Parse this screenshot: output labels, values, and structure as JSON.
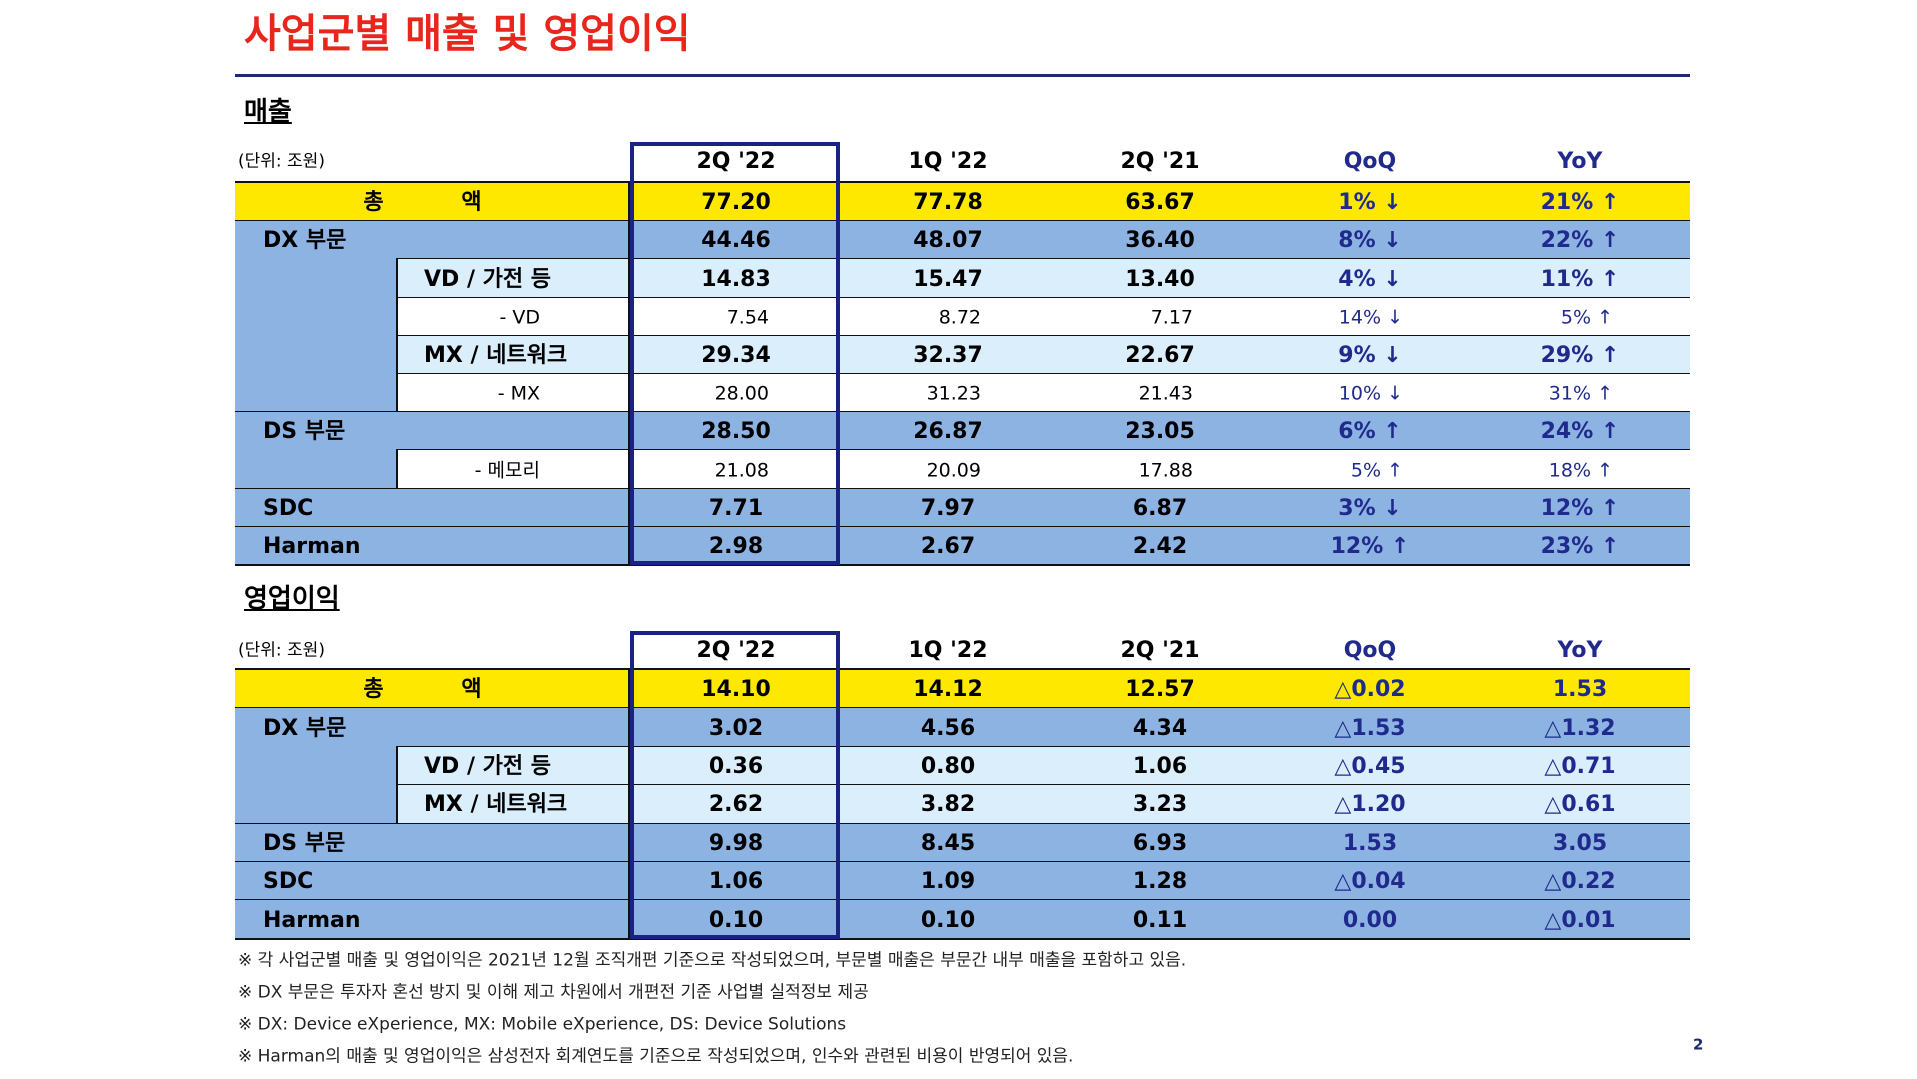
{
  "title": "사업군별 매출 및 영업이익",
  "sections": [
    {
      "title": "매출",
      "unit": "(단위: 조원)",
      "headers": [
        "2Q '22",
        "1Q '22",
        "2Q '21",
        "QoQ",
        "YoY"
      ],
      "rows": [
        {
          "label": "총 액",
          "kind": "total",
          "values": [
            "77.20",
            "77.78",
            "63.67",
            "1% ↓",
            "21% ↑"
          ]
        },
        {
          "label": "DX 부문",
          "kind": "main",
          "values": [
            "44.46",
            "48.07",
            "36.40",
            "8% ↓",
            "22% ↑"
          ]
        },
        {
          "label": "VD / 가전 등",
          "kind": "sub",
          "values": [
            "14.83",
            "15.47",
            "13.40",
            "4% ↓",
            "11% ↑"
          ]
        },
        {
          "label": "- VD",
          "kind": "detail",
          "values": [
            "7.54",
            "8.72",
            "7.17",
            "14% ↓",
            "5% ↑"
          ]
        },
        {
          "label": "MX / 네트워크",
          "kind": "sub",
          "values": [
            "29.34",
            "32.37",
            "22.67",
            "9% ↓",
            "29% ↑"
          ]
        },
        {
          "label": "- MX",
          "kind": "detail",
          "values": [
            "28.00",
            "31.23",
            "21.43",
            "10% ↓",
            "31% ↑"
          ]
        },
        {
          "label": "DS 부문",
          "kind": "main",
          "values": [
            "28.50",
            "26.87",
            "23.05",
            "6% ↑",
            "24% ↑"
          ]
        },
        {
          "label": "- 메모리",
          "kind": "detail",
          "values": [
            "21.08",
            "20.09",
            "17.88",
            "5% ↑",
            "18% ↑"
          ]
        },
        {
          "label": "SDC",
          "kind": "main",
          "values": [
            "7.71",
            "7.97",
            "6.87",
            "3% ↓",
            "12% ↑"
          ]
        },
        {
          "label": "Harman",
          "kind": "main",
          "values": [
            "2.98",
            "2.67",
            "2.42",
            "12% ↑",
            "23% ↑"
          ]
        }
      ]
    },
    {
      "title": "영업이익",
      "unit": "(단위: 조원)",
      "headers": [
        "2Q '22",
        "1Q '22",
        "2Q '21",
        "QoQ",
        "YoY"
      ],
      "rows": [
        {
          "label": "총 액",
          "kind": "total",
          "values": [
            "14.10",
            "14.12",
            "12.57",
            "△0.02",
            "1.53"
          ]
        },
        {
          "label": "DX 부문",
          "kind": "main",
          "values": [
            "3.02",
            "4.56",
            "4.34",
            "△1.53",
            "△1.32"
          ]
        },
        {
          "label": "VD / 가전 등",
          "kind": "sub",
          "values": [
            "0.36",
            "0.80",
            "1.06",
            "△0.45",
            "△0.71"
          ]
        },
        {
          "label": "MX / 네트워크",
          "kind": "sub",
          "values": [
            "2.62",
            "3.82",
            "3.23",
            "△1.20",
            "△0.61"
          ]
        },
        {
          "label": "DS 부문",
          "kind": "main",
          "values": [
            "9.98",
            "8.45",
            "6.93",
            "1.53",
            "3.05"
          ]
        },
        {
          "label": "SDC",
          "kind": "main",
          "values": [
            "1.06",
            "1.09",
            "1.28",
            "△0.04",
            "△0.22"
          ]
        },
        {
          "label": "Harman",
          "kind": "main",
          "values": [
            "0.10",
            "0.10",
            "0.11",
            "0.00",
            "△0.01"
          ]
        }
      ]
    }
  ],
  "footnotes": [
    "※ 각 사업군별 매출 및 영업이익은 2021년 12월 조직개편 기준으로 작성되었으며, 부문별 매출은 부문간 내부 매출을 포함하고 있음.",
    "※ DX 부문은 투자자 혼선 방지 및 이해 제고 차원에서 개편전 기준 사업별 실적정보 제공",
    "※ DX: Device eXperience, MX: Mobile eXperience, DS: Device Solutions",
    "※ Harman의 매출 및 영업이익은 삼성전자 회계연도를 기준으로 작성되었으며, 인수와 관련된 비용이 반영되어 있음."
  ],
  "page": "2"
}
